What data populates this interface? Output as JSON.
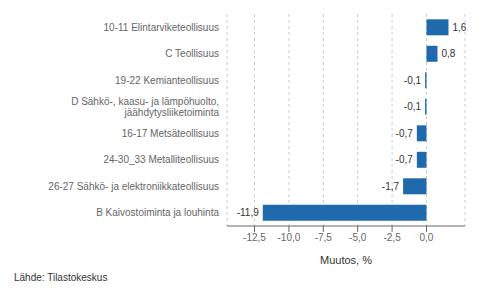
{
  "chart_data": {
    "type": "bar",
    "orientation": "horizontal",
    "categories": [
      "B Kaivostoiminta ja louhinta",
      "26-27 Sähkö- ja elektroniikkateollisuus",
      "24-30_33 Metalliteollisuus",
      "16-17 Metsäteollisuus",
      "D Sähkö-, kaasu- ja lämpöhuolto,\njäähdytysliiketoiminta",
      "19-22 Kemianteollisuus",
      "C Teollisuus",
      "10-11 Elintarviketeollisuus"
    ],
    "values": [
      -11.9,
      -1.7,
      -0.7,
      -0.7,
      -0.1,
      -0.1,
      0.8,
      1.6
    ],
    "value_labels": [
      "-11,9",
      "-1,7",
      "-0,7",
      "-0,7",
      "-0,1",
      "-0,1",
      "0,8",
      "1,6"
    ],
    "data_labels": true,
    "color": "#1f6aad",
    "xlabel": "Muutos, %",
    "xlim": [
      -14.5,
      2.8
    ],
    "xticks": [
      {
        "value": -12.5,
        "label": "-12,5"
      },
      {
        "value": -10.0,
        "label": "-10,0"
      },
      {
        "value": -7.5,
        "label": "-7,5"
      },
      {
        "value": -5.0,
        "label": "-5,0"
      },
      {
        "value": -2.5,
        "label": "-2,5"
      },
      {
        "value": 0.0,
        "label": "0,0"
      }
    ],
    "grid": true,
    "annotations": [
      "Lähde: Tilastokeskus"
    ]
  }
}
